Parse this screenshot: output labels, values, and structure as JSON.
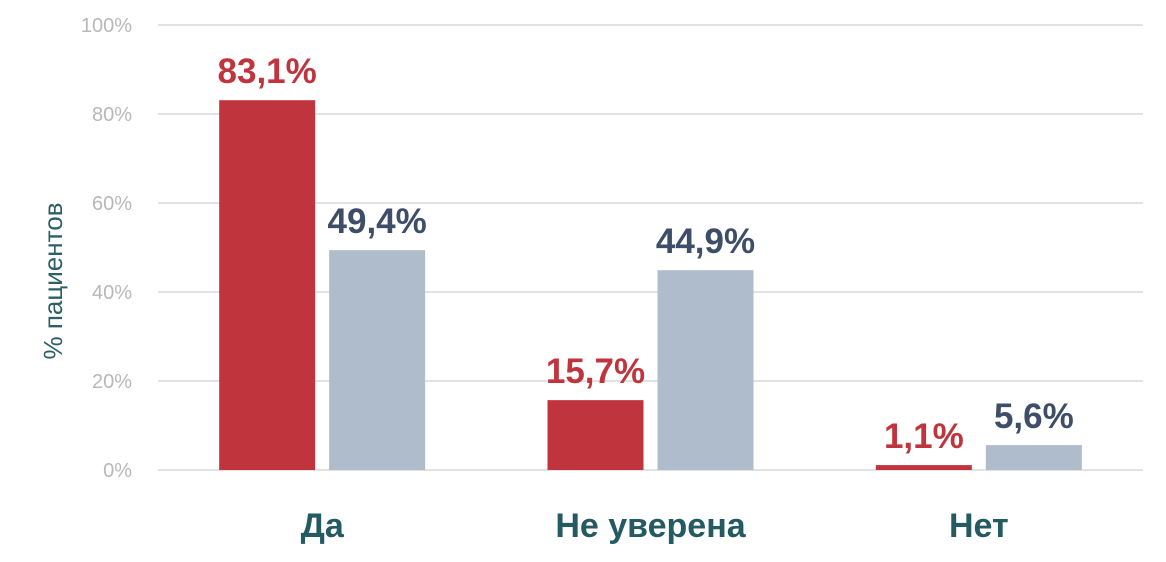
{
  "chart_data": {
    "type": "bar",
    "categories": [
      "Да",
      "Не уверена",
      "Нет"
    ],
    "series": [
      {
        "values": [
          83.1,
          15.7,
          1.1
        ],
        "labels": [
          "83,1%",
          "15,7%",
          "1,1%"
        ],
        "color": "#c0343d",
        "label_color": "#c0343d"
      },
      {
        "values": [
          49.4,
          44.9,
          5.6
        ],
        "labels": [
          "49,4%",
          "44,9%",
          "5,6%"
        ],
        "color": "#afbccb",
        "label_color": "#3e4e68"
      }
    ],
    "ylabel": "% пациентов",
    "ylim": [
      0,
      100
    ],
    "yticks": [
      0,
      20,
      40,
      60,
      80,
      100
    ],
    "ytick_labels": [
      "0%",
      "20%",
      "40%",
      "60%",
      "80%",
      "100%"
    ],
    "grid": true,
    "legend": "none",
    "gridline_color": "#d9d9d9",
    "tick_label_color": "#b8b8b8",
    "axis_title_color": "#2d5f66",
    "category_label_color": "#245a61"
  }
}
